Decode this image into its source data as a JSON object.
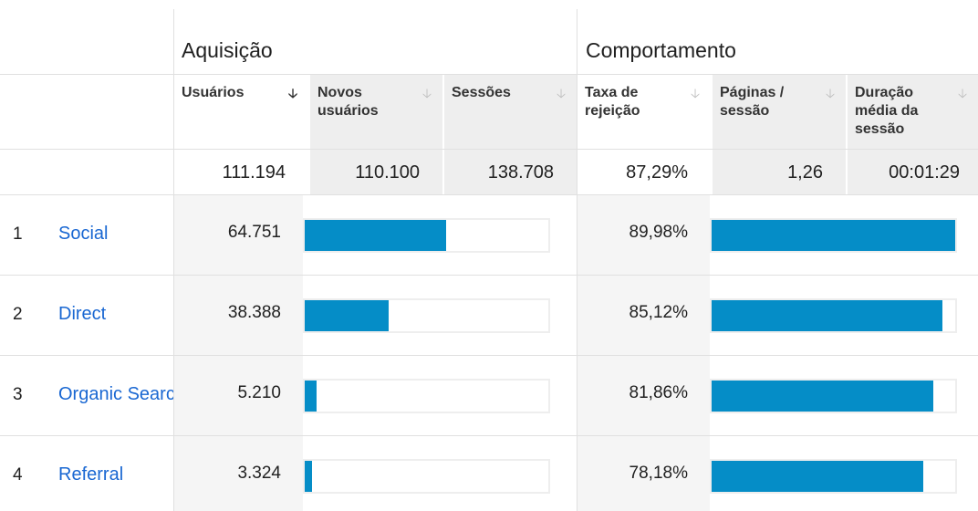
{
  "groups": {
    "acquisition": "Aquisição",
    "behavior": "Comportamento"
  },
  "columns": [
    {
      "label": "Usuários",
      "sorted": true
    },
    {
      "label": "Novos usuários",
      "sorted": false
    },
    {
      "label": "Sessões",
      "sorted": false
    },
    {
      "label": "Taxa de rejeição",
      "sorted": false
    },
    {
      "label": "Páginas / sessão",
      "sorted": false
    },
    {
      "label": "Duração média da sessão",
      "sorted": false
    }
  ],
  "sort_icon": "sort-down-arrow-icon",
  "totals": {
    "users": "111.194",
    "new_users": "110.100",
    "sessions": "138.708",
    "bounce_rate": "87,29%",
    "pages_per_session": "1,26",
    "avg_session_duration": "00:01:29"
  },
  "rows": [
    {
      "index": "1",
      "channel": "Social",
      "users": "64.751",
      "users_share": 0.582,
      "bounce_rate": "89,98%",
      "bounce_share": 0.9998
    },
    {
      "index": "2",
      "channel": "Direct",
      "users": "38.388",
      "users_share": 0.345,
      "bounce_rate": "85,12%",
      "bounce_share": 0.946
    },
    {
      "index": "3",
      "channel": "Organic Search",
      "users": "5.210",
      "users_share": 0.047,
      "bounce_rate": "81,86%",
      "bounce_share": 0.91
    },
    {
      "index": "4",
      "channel": "Referral",
      "users": "3.324",
      "users_share": 0.03,
      "bounce_rate": "78,18%",
      "bounce_share": 0.869
    }
  ],
  "colors": {
    "bar": "#058dc7",
    "link": "#1967d2",
    "header_bg": "#eeeeee"
  }
}
